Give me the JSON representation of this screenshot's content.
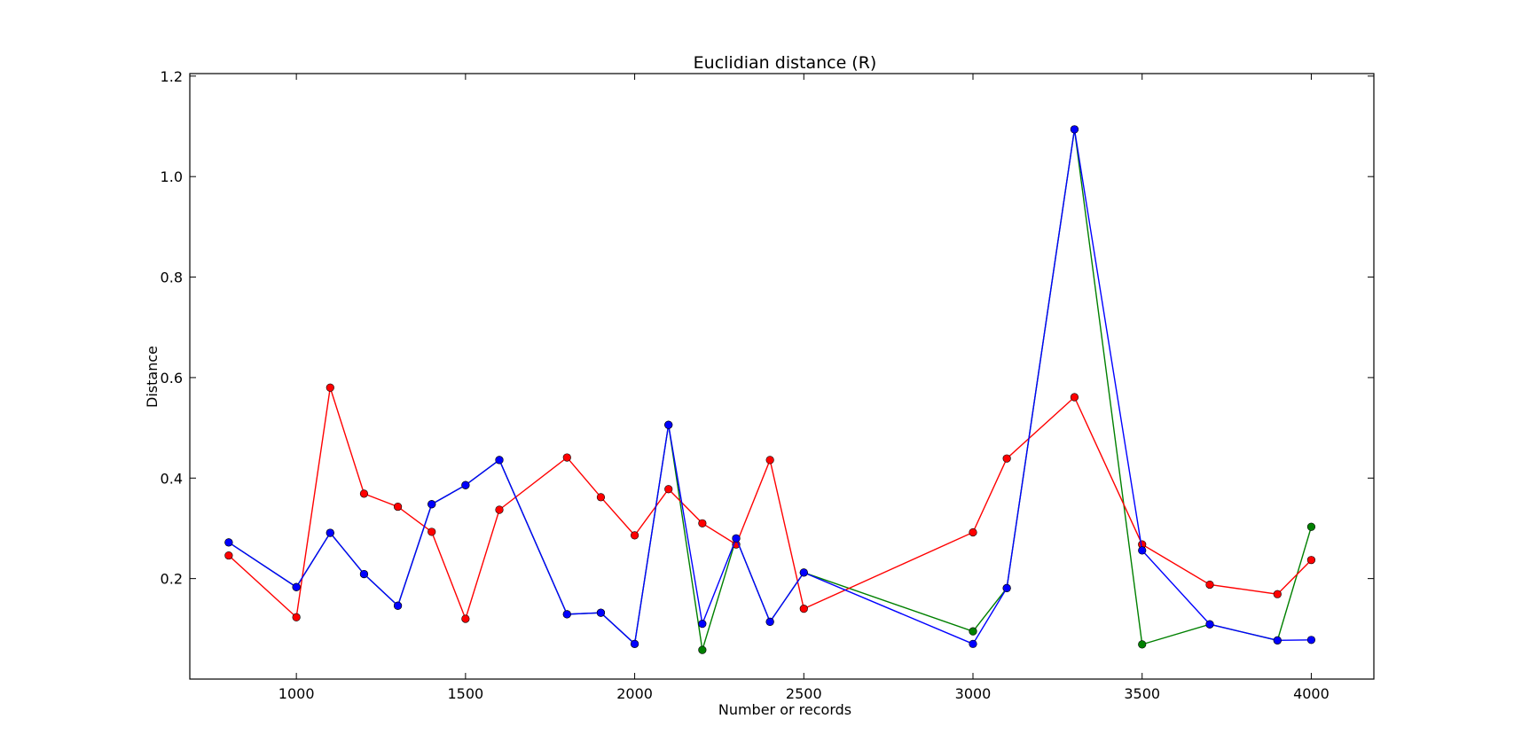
{
  "chart_data": {
    "type": "line",
    "title": "Euclidian distance (R)",
    "xlabel": "Number or records",
    "ylabel": "Distance",
    "xlim": [
      685,
      4185
    ],
    "ylim": [
      0.0,
      1.205
    ],
    "xticks": [
      1000,
      1500,
      2000,
      2500,
      3000,
      3500,
      4000
    ],
    "yticks": [
      0.2,
      0.4,
      0.6,
      0.8,
      1.0,
      1.2
    ],
    "ytick_labels": [
      "0.2",
      "0.4",
      "0.6",
      "0.8",
      "1.0",
      "1.2"
    ],
    "grid": false,
    "legend": "none",
    "series": [
      {
        "color": "#008000",
        "x": [
          800,
          1000,
          1100,
          1200,
          1300,
          1400,
          1500,
          1600,
          1800,
          1900,
          2000,
          2100,
          2200,
          2300,
          2400,
          2500,
          3000,
          3100,
          3300,
          3500,
          3700,
          3900,
          4000
        ],
        "y": [
          0.272,
          0.183,
          0.291,
          0.209,
          0.146,
          0.348,
          0.386,
          0.436,
          0.129,
          0.132,
          0.07,
          0.506,
          0.058,
          0.28,
          0.114,
          0.212,
          0.095,
          0.181,
          1.094,
          0.069,
          0.109,
          0.077,
          0.303
        ]
      },
      {
        "color": "#ff0000",
        "x": [
          800,
          1000,
          1100,
          1200,
          1300,
          1400,
          1500,
          1600,
          1800,
          1900,
          2000,
          2100,
          2200,
          2300,
          2400,
          2500,
          3000,
          3100,
          3300,
          3500,
          3700,
          3900,
          4000
        ],
        "y": [
          0.246,
          0.123,
          0.58,
          0.369,
          0.343,
          0.293,
          0.12,
          0.337,
          0.441,
          0.362,
          0.286,
          0.378,
          0.31,
          0.268,
          0.436,
          0.14,
          0.292,
          0.439,
          0.561,
          0.268,
          0.188,
          0.169,
          0.237
        ]
      },
      {
        "color": "#0000ff",
        "x": [
          800,
          1000,
          1100,
          1200,
          1300,
          1400,
          1500,
          1600,
          1800,
          1900,
          2000,
          2100,
          2200,
          2300,
          2400,
          2500,
          3000,
          3100,
          3300,
          3500,
          3700,
          3900,
          4000
        ],
        "y": [
          0.272,
          0.183,
          0.291,
          0.209,
          0.146,
          0.348,
          0.386,
          0.436,
          0.129,
          0.132,
          0.07,
          0.506,
          0.11,
          0.28,
          0.114,
          0.212,
          0.07,
          0.181,
          1.094,
          0.256,
          0.109,
          0.077,
          0.078
        ]
      }
    ]
  }
}
